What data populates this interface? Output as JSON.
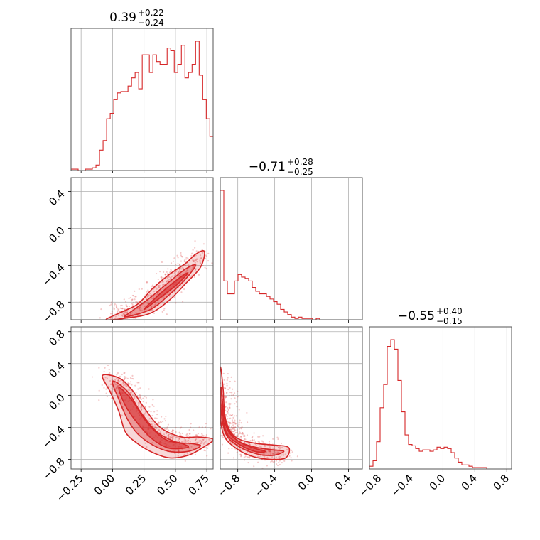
{
  "figure": {
    "color": "#d62728",
    "titles": [
      {
        "median": "0.39",
        "plus": "+0.22",
        "minus": "−0.24"
      },
      {
        "median": "−0.71",
        "plus": "+0.28",
        "minus": "−0.25"
      },
      {
        "median": "−0.55",
        "plus": "+0.40",
        "minus": "−0.15"
      }
    ]
  },
  "chart_data": {
    "type": "corner",
    "grid": true,
    "parameters": [
      {
        "name": "",
        "range": [
          -0.33,
          0.8
        ],
        "ticks": [
          -0.25,
          0.0,
          0.25,
          0.5,
          0.75
        ],
        "tick_labels": [
          "−0.25",
          "0.00",
          "0.25",
          "0.50",
          "0.75"
        ]
      },
      {
        "name": "",
        "range": [
          -0.99,
          0.55
        ],
        "ticks": [
          -0.8,
          -0.4,
          0.0,
          0.4
        ],
        "tick_labels": [
          "−0.8",
          "−0.4",
          "0.0",
          "0.4"
        ]
      },
      {
        "name": "",
        "range": [
          -0.92,
          0.86
        ],
        "ticks": [
          -0.8,
          -0.4,
          0.0,
          0.4,
          0.8
        ],
        "tick_labels": [
          "−0.8",
          "−0.4",
          "0.0",
          "0.4",
          "0.8"
        ]
      }
    ],
    "marginals": [
      {
        "bin_start": -0.33,
        "bin_width": 0.0283,
        "counts": [
          0.01,
          0.01,
          0.0,
          0.0,
          0.01,
          0.01,
          0.02,
          0.04,
          0.15,
          0.22,
          0.38,
          0.42,
          0.52,
          0.57,
          0.58,
          0.58,
          0.62,
          0.68,
          0.72,
          0.6,
          0.85,
          0.85,
          0.72,
          0.85,
          0.8,
          0.78,
          0.78,
          0.9,
          0.88,
          0.72,
          0.78,
          0.92,
          0.68,
          0.72,
          0.78,
          0.95,
          0.7,
          0.52,
          0.38,
          0.25,
          0.1,
          0.04
        ]
      },
      {
        "bin_start": -0.99,
        "bin_width": 0.0385,
        "counts": [
          1.0,
          0.3,
          0.2,
          0.2,
          0.3,
          0.35,
          0.33,
          0.32,
          0.3,
          0.25,
          0.22,
          0.2,
          0.2,
          0.18,
          0.16,
          0.14,
          0.12,
          0.08,
          0.06,
          0.04,
          0.02,
          0.01,
          0.02,
          0.01,
          0.01,
          0.01,
          0.0,
          0.01,
          0.0,
          0.0,
          0.0,
          0.0,
          0.0,
          0.0,
          0.0,
          0.0,
          0.0,
          0.0,
          0.0,
          0.0
        ]
      },
      {
        "bin_start": -0.92,
        "bin_width": 0.0445,
        "counts": [
          0.02,
          0.06,
          0.2,
          0.45,
          0.62,
          0.9,
          0.95,
          0.88,
          0.65,
          0.42,
          0.25,
          0.18,
          0.17,
          0.15,
          0.13,
          0.14,
          0.14,
          0.13,
          0.14,
          0.16,
          0.15,
          0.16,
          0.15,
          0.12,
          0.08,
          0.05,
          0.03,
          0.03,
          0.02,
          0.01,
          0.01,
          0.01,
          0.01,
          0.0,
          0.0,
          0.0,
          0.0,
          0.0,
          0.0,
          0.0
        ]
      }
    ],
    "pairs": [
      {
        "x_param": 0,
        "y_param": 1,
        "density_ridge": [
          [
            0.0,
            -0.96
          ],
          [
            0.12,
            -0.93
          ],
          [
            0.2,
            -0.88
          ],
          [
            0.3,
            -0.78
          ],
          [
            0.4,
            -0.65
          ],
          [
            0.5,
            -0.52
          ],
          [
            0.6,
            -0.42
          ],
          [
            0.7,
            -0.3
          ]
        ],
        "contours": [
          [
            [
              -0.05,
              -0.99
            ],
            [
              0.12,
              -0.97
            ],
            [
              0.3,
              -0.92
            ],
            [
              0.45,
              -0.78
            ],
            [
              0.58,
              -0.6
            ],
            [
              0.7,
              -0.42
            ],
            [
              0.73,
              -0.25
            ],
            [
              0.66,
              -0.28
            ],
            [
              0.58,
              -0.38
            ],
            [
              0.45,
              -0.5
            ],
            [
              0.32,
              -0.65
            ],
            [
              0.2,
              -0.82
            ],
            [
              0.05,
              -0.92
            ]
          ],
          [
            [
              0.1,
              -0.96
            ],
            [
              0.3,
              -0.88
            ],
            [
              0.45,
              -0.72
            ],
            [
              0.58,
              -0.55
            ],
            [
              0.66,
              -0.4
            ],
            [
              0.58,
              -0.44
            ],
            [
              0.45,
              -0.58
            ],
            [
              0.3,
              -0.75
            ],
            [
              0.15,
              -0.9
            ]
          ],
          [
            [
              0.25,
              -0.88
            ],
            [
              0.38,
              -0.75
            ],
            [
              0.52,
              -0.6
            ],
            [
              0.6,
              -0.48
            ],
            [
              0.5,
              -0.57
            ],
            [
              0.36,
              -0.73
            ]
          ]
        ]
      },
      {
        "x_param": 0,
        "y_param": 2,
        "density_ridge": [
          [
            -0.05,
            0.2
          ],
          [
            0.1,
            0.1
          ],
          [
            0.2,
            -0.1
          ],
          [
            0.3,
            -0.35
          ],
          [
            0.4,
            -0.5
          ],
          [
            0.5,
            -0.6
          ],
          [
            0.6,
            -0.6
          ],
          [
            0.75,
            -0.55
          ]
        ],
        "contours": [
          [
            [
              -0.08,
              0.25
            ],
            [
              0.05,
              0.22
            ],
            [
              0.15,
              0.08
            ],
            [
              0.25,
              -0.15
            ],
            [
              0.38,
              -0.4
            ],
            [
              0.55,
              -0.52
            ],
            [
              0.68,
              -0.52
            ],
            [
              0.8,
              -0.55
            ],
            [
              0.72,
              -0.65
            ],
            [
              0.6,
              -0.75
            ],
            [
              0.45,
              -0.78
            ],
            [
              0.3,
              -0.7
            ],
            [
              0.18,
              -0.58
            ],
            [
              0.1,
              -0.45
            ],
            [
              0.05,
              -0.2
            ],
            [
              -0.02,
              0.05
            ]
          ],
          [
            [
              0.0,
              0.18
            ],
            [
              0.12,
              0.05
            ],
            [
              0.22,
              -0.2
            ],
            [
              0.35,
              -0.45
            ],
            [
              0.5,
              -0.58
            ],
            [
              0.62,
              -0.6
            ],
            [
              0.7,
              -0.63
            ],
            [
              0.6,
              -0.7
            ],
            [
              0.45,
              -0.7
            ],
            [
              0.32,
              -0.62
            ],
            [
              0.2,
              -0.48
            ],
            [
              0.12,
              -0.3
            ],
            [
              0.05,
              -0.05
            ]
          ],
          [
            [
              0.05,
              0.1
            ],
            [
              0.15,
              -0.05
            ],
            [
              0.28,
              -0.35
            ],
            [
              0.42,
              -0.55
            ],
            [
              0.55,
              -0.6
            ],
            [
              0.6,
              -0.65
            ],
            [
              0.45,
              -0.66
            ],
            [
              0.32,
              -0.55
            ],
            [
              0.2,
              -0.35
            ],
            [
              0.1,
              -0.12
            ]
          ]
        ]
      },
      {
        "x_param": 1,
        "y_param": 2,
        "density_ridge": [
          [
            -0.97,
            0.2
          ],
          [
            -0.95,
            -0.1
          ],
          [
            -0.92,
            -0.35
          ],
          [
            -0.85,
            -0.5
          ],
          [
            -0.75,
            -0.6
          ],
          [
            -0.6,
            -0.68
          ],
          [
            -0.45,
            -0.72
          ],
          [
            -0.3,
            -0.73
          ]
        ],
        "contours": [
          [
            [
              -0.99,
              0.35
            ],
            [
              -0.96,
              0.1
            ],
            [
              -0.94,
              -0.25
            ],
            [
              -0.88,
              -0.45
            ],
            [
              -0.78,
              -0.55
            ],
            [
              -0.6,
              -0.6
            ],
            [
              -0.42,
              -0.62
            ],
            [
              -0.25,
              -0.65
            ],
            [
              -0.28,
              -0.78
            ],
            [
              -0.45,
              -0.8
            ],
            [
              -0.65,
              -0.76
            ],
            [
              -0.82,
              -0.66
            ],
            [
              -0.95,
              -0.5
            ],
            [
              -0.99,
              -0.2
            ]
          ],
          [
            [
              -0.98,
              0.1
            ],
            [
              -0.95,
              -0.25
            ],
            [
              -0.9,
              -0.45
            ],
            [
              -0.78,
              -0.58
            ],
            [
              -0.6,
              -0.65
            ],
            [
              -0.42,
              -0.68
            ],
            [
              -0.3,
              -0.7
            ],
            [
              -0.42,
              -0.75
            ],
            [
              -0.6,
              -0.73
            ],
            [
              -0.8,
              -0.63
            ],
            [
              -0.93,
              -0.48
            ],
            [
              -0.98,
              -0.2
            ]
          ],
          [
            [
              -0.97,
              -0.1
            ],
            [
              -0.92,
              -0.38
            ],
            [
              -0.82,
              -0.55
            ],
            [
              -0.65,
              -0.65
            ],
            [
              -0.5,
              -0.7
            ],
            [
              -0.62,
              -0.7
            ],
            [
              -0.8,
              -0.6
            ],
            [
              -0.93,
              -0.45
            ]
          ]
        ]
      }
    ]
  }
}
